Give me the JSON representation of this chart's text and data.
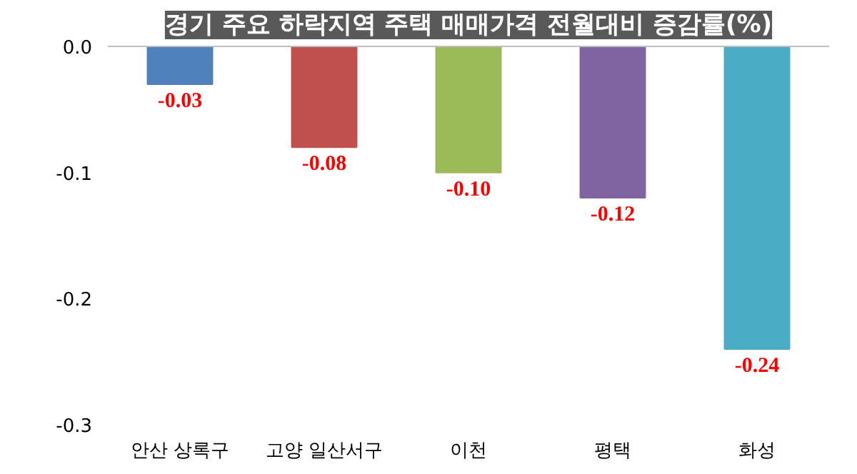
{
  "chart_data": {
    "type": "bar",
    "title": "경기 주요 하락지역 주택 매매가격 전월대비 증감률(%)",
    "categories": [
      "안산 상록구",
      "고양 일산서구",
      "이천",
      "평택",
      "화성"
    ],
    "values": [
      -0.03,
      -0.08,
      -0.1,
      -0.12,
      -0.24
    ],
    "colors": [
      "#4f81bd",
      "#c0504d",
      "#9bbb59",
      "#8064a2",
      "#4bacc6"
    ],
    "value_labels": [
      "-0.03",
      "-0.08",
      "-0.10",
      "-0.12",
      "-0.24"
    ],
    "ylim": [
      -0.3,
      0.0
    ],
    "yticks": [
      {
        "value": 0.0,
        "label": "0.0"
      },
      {
        "value": -0.1,
        "label": "-0.1"
      },
      {
        "value": -0.2,
        "label": "-0.2"
      },
      {
        "value": -0.3,
        "label": "-0.3"
      }
    ],
    "grid": false
  }
}
